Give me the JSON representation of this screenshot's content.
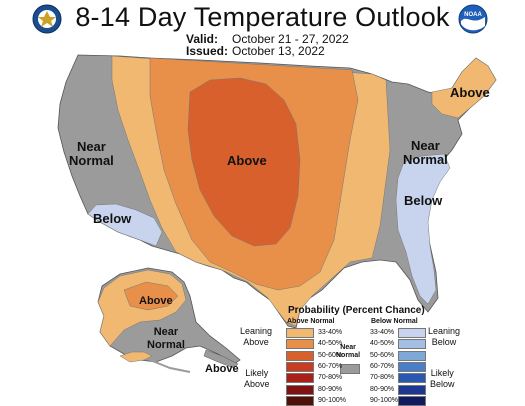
{
  "header": {
    "title": "8-14 Day Temperature Outlook",
    "valid_label": "Valid:",
    "valid_value": "October 21 - 27, 2022",
    "issued_label": "Issued:",
    "issued_value": "October 13, 2022"
  },
  "logos": {
    "left": "doc-seal-icon",
    "right": "noaa-logo-icon",
    "noaa_text": "NOAA"
  },
  "regions": {
    "above_central": "Above",
    "above_northeast": "Above",
    "above_alaska": "Above",
    "above_aleutians": "Above",
    "near_normal_west": "Near\nNormal",
    "near_normal_east": "Near\nNormal",
    "near_normal_alaska": "Near\nNormal",
    "below_southwest": "Below",
    "below_southeast": "Below"
  },
  "colors": {
    "land_gray": "#9b9b9b",
    "above_33": "#f0b870",
    "above_40": "#e8904a",
    "above_50": "#d8602c",
    "above_60": "#c83c20",
    "above_70": "#a82018",
    "above_80": "#801214",
    "above_90": "#501008",
    "below_33": "#c8d4ee",
    "below_40": "#a4bee4",
    "below_50": "#7ea8d8",
    "below_60": "#4a7ec8",
    "below_70": "#2a58b0",
    "below_80": "#1c3890",
    "below_90": "#101a60",
    "near_normal": "#9b9b9b"
  },
  "legend": {
    "title": "Probability (Percent Chance)",
    "above_heading": "Above Normal",
    "below_heading": "Below Normal",
    "near_normal": "Near\nNormal",
    "leaning_above": "Leaning\nAbove",
    "likely_above": "Likely\nAbove",
    "leaning_below": "Leaning\nBelow",
    "likely_below": "Likely\nBelow",
    "bins": [
      "33-40%",
      "40-50%",
      "50-60%",
      "60-70%",
      "70-80%",
      "80-90%",
      "90-100%"
    ]
  }
}
